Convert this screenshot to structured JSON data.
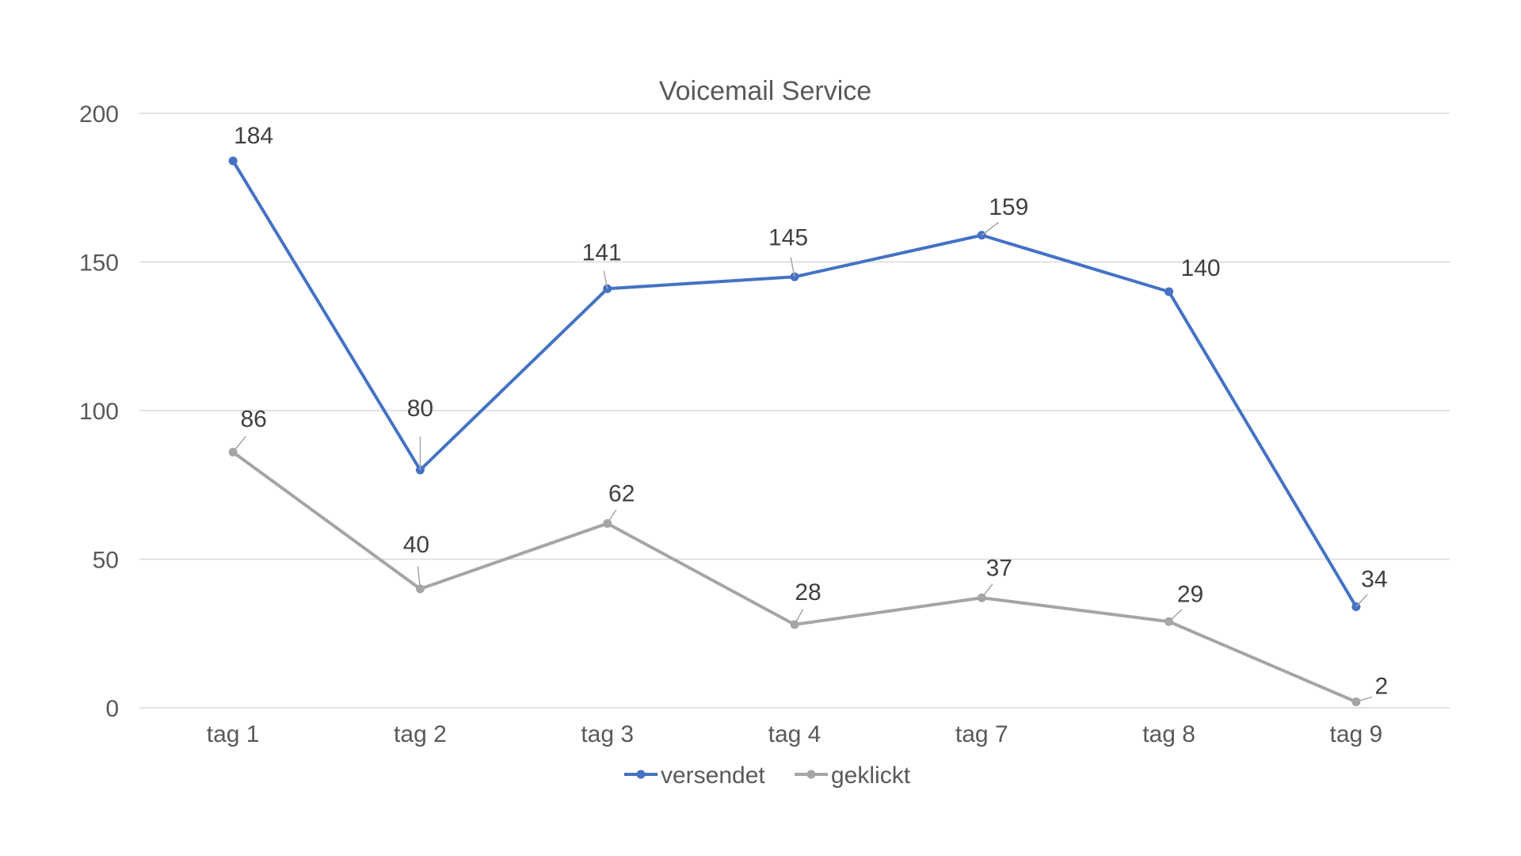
{
  "chart_data": {
    "type": "line",
    "title": "Voicemail Service",
    "categories": [
      "tag 1",
      "tag 2",
      "tag 3",
      "tag 4",
      "tag 7",
      "tag 8",
      "tag 9"
    ],
    "series": [
      {
        "name": "versendet",
        "values": [
          184,
          80,
          141,
          145,
          159,
          140,
          34
        ],
        "labels": [
          "184",
          "80",
          "141",
          "145",
          "159",
          "140",
          "34"
        ],
        "color": "#4472C4"
      },
      {
        "name": "geklickt",
        "values": [
          86,
          40,
          62,
          28,
          37,
          29,
          2
        ],
        "labels": [
          "86",
          "40",
          "62",
          "28",
          "37",
          "29",
          "2"
        ],
        "color": "#A5A5A5"
      }
    ],
    "ylim": [
      0,
      200
    ],
    "yticks": [
      0,
      50,
      100,
      150,
      200
    ],
    "ytick_labels": [
      "0",
      "50",
      "100",
      "150",
      "200"
    ],
    "grid": true,
    "legend_position": "bottom"
  }
}
